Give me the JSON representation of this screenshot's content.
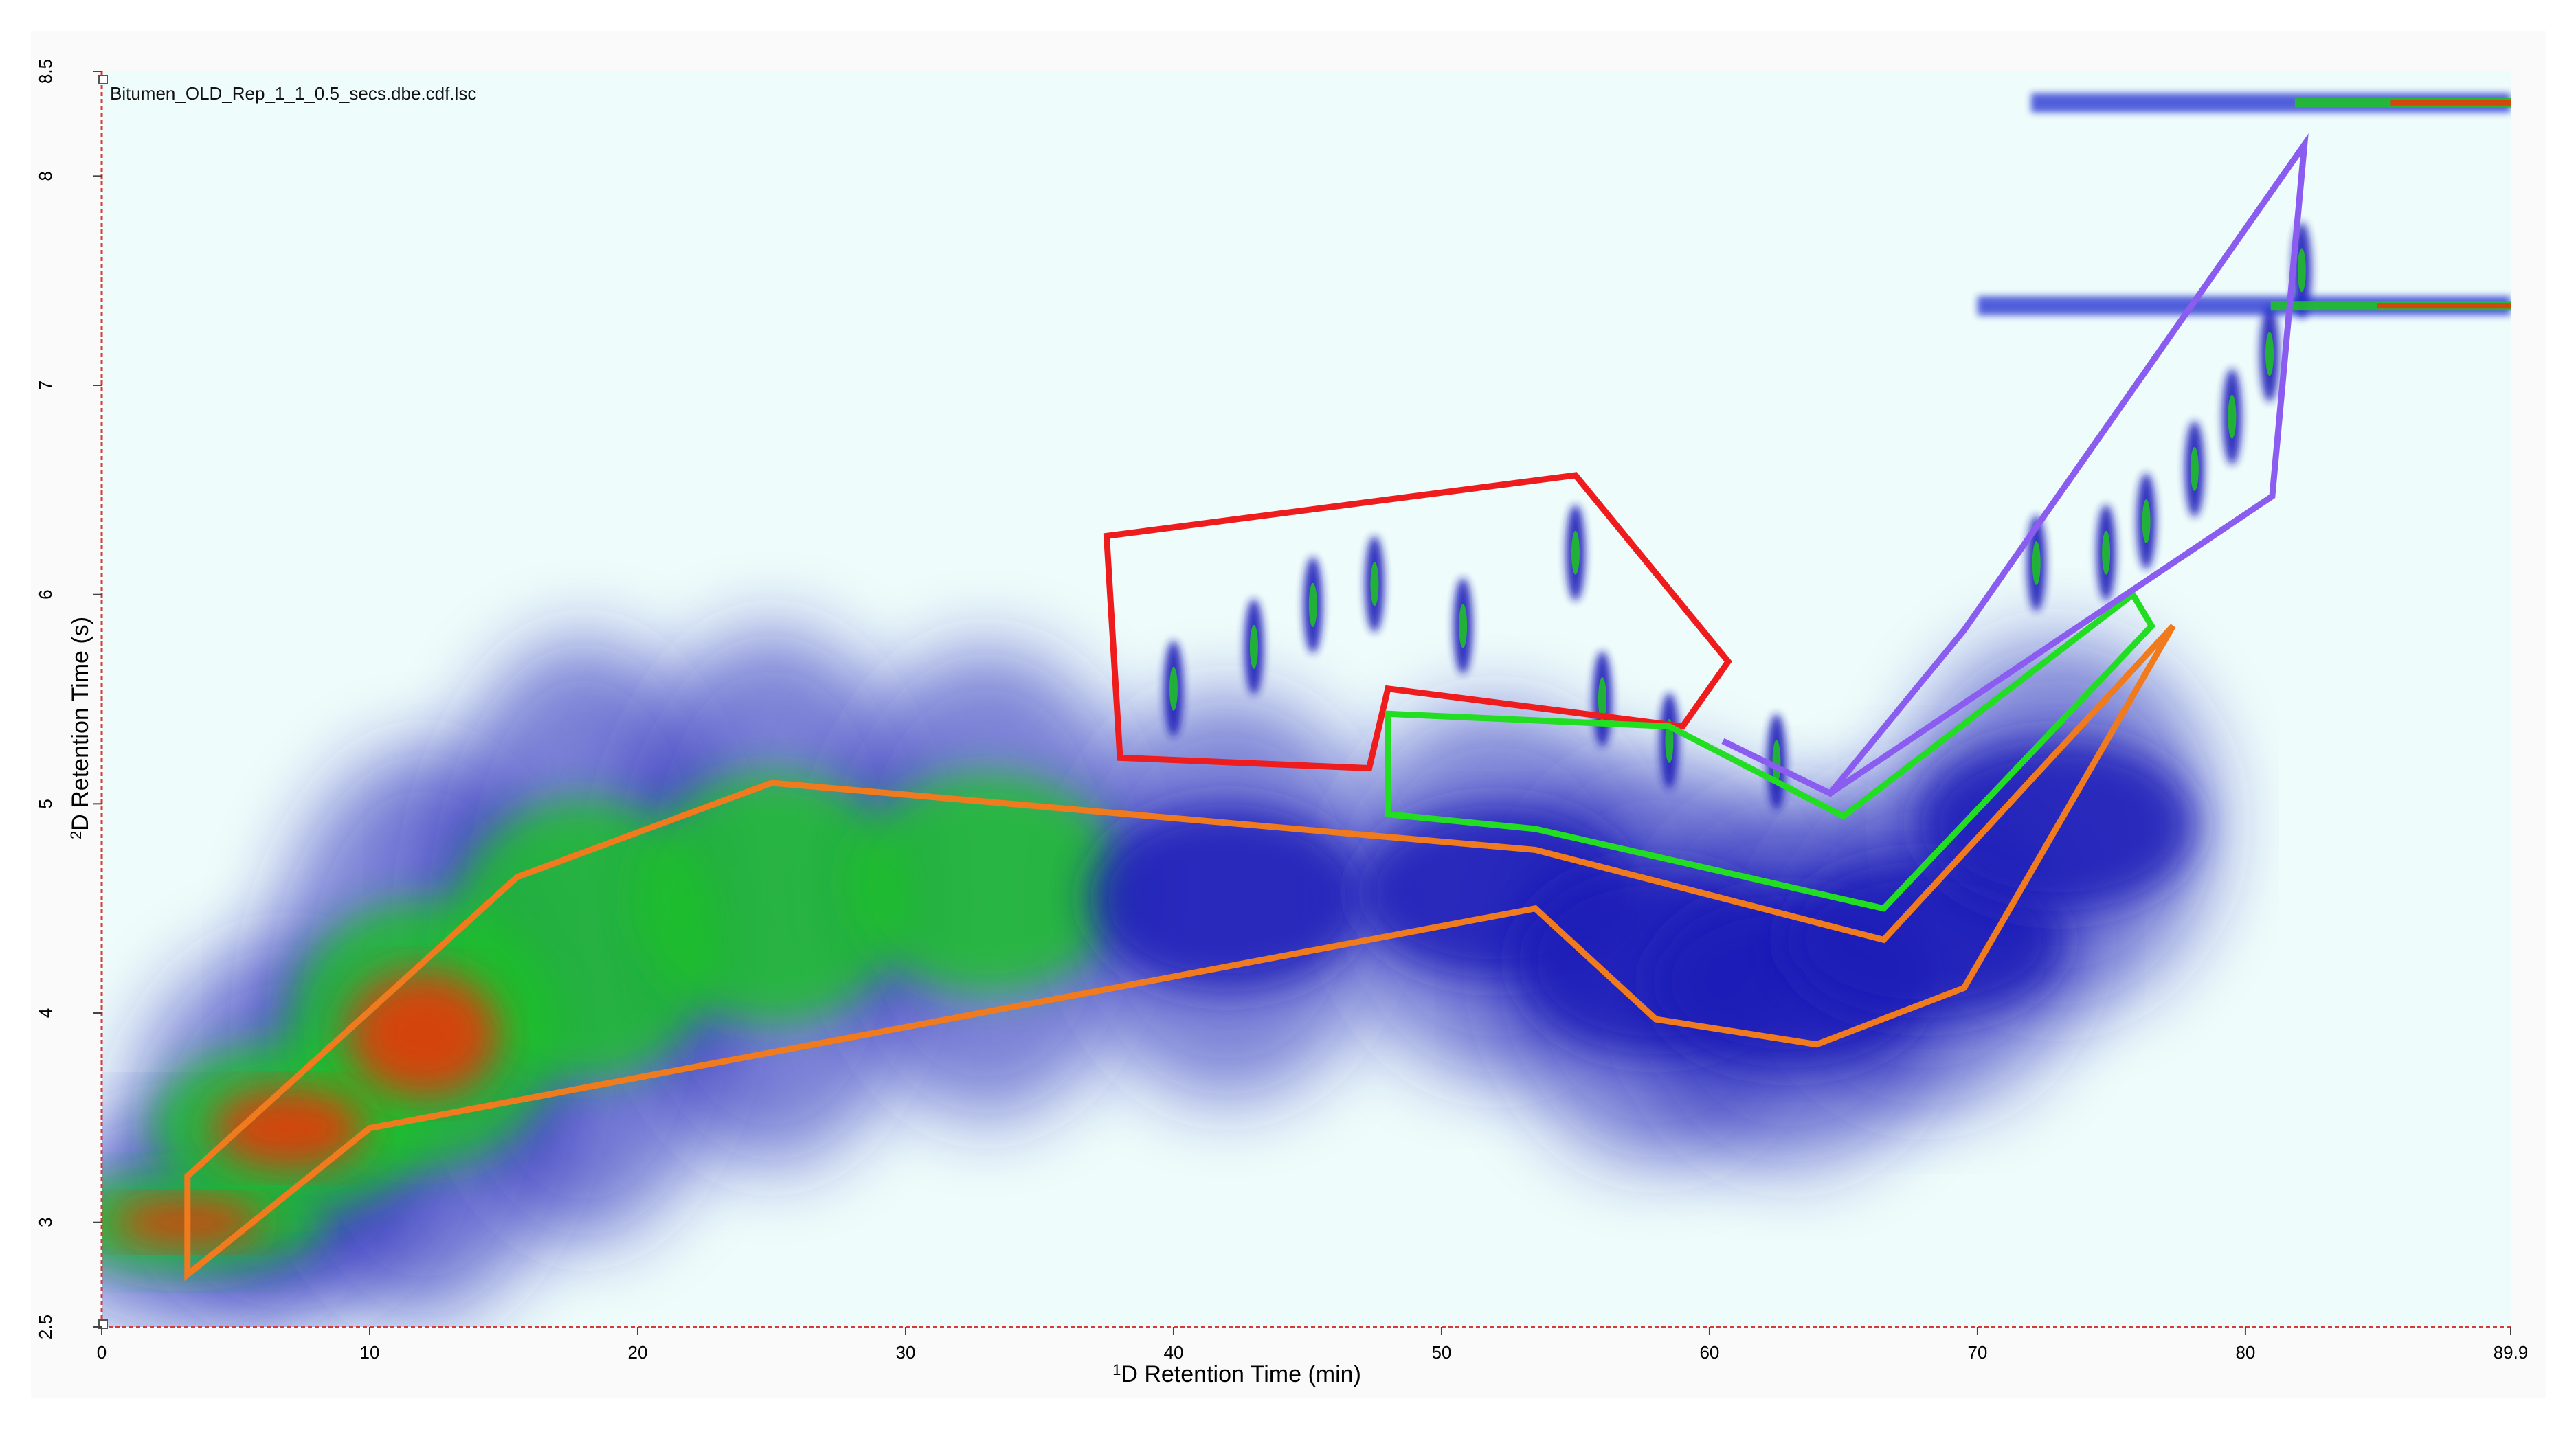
{
  "chart_data": {
    "type": "heatmap",
    "file_label": "Bitumen_OLD_Rep_1_1_0.5_secs.dbe.cdf.lsc",
    "xlabel_sup": "1",
    "xlabel_rest": "D Retention Time (min)",
    "ylabel_sup": "2",
    "ylabel_rest": "D Retention Time (s)",
    "xlim": [
      0,
      89.9
    ],
    "ylim": [
      2.5,
      8.5
    ],
    "x_ticks": [
      {
        "value": 0,
        "label": "0"
      },
      {
        "value": 10,
        "label": "10"
      },
      {
        "value": 20,
        "label": "20"
      },
      {
        "value": 30,
        "label": "30"
      },
      {
        "value": 40,
        "label": "40"
      },
      {
        "value": 50,
        "label": "50"
      },
      {
        "value": 60,
        "label": "60"
      },
      {
        "value": 70,
        "label": "70"
      },
      {
        "value": 80,
        "label": "80"
      },
      {
        "value": 89.9,
        "label": "89.9"
      }
    ],
    "y_ticks": [
      {
        "value": 2.5,
        "label": "2.5"
      },
      {
        "value": 3,
        "label": "3"
      },
      {
        "value": 4,
        "label": "4"
      },
      {
        "value": 5,
        "label": "5"
      },
      {
        "value": 6,
        "label": "6"
      },
      {
        "value": 7,
        "label": "7"
      },
      {
        "value": 8,
        "label": "8"
      },
      {
        "value": 8.5,
        "label": "8.5"
      }
    ],
    "colors": {
      "background": "#eefcfb",
      "low": "#1f1fb8",
      "mid": "#1fbf2a",
      "high": "#ff2a00",
      "bleed": "#1a2ad0"
    },
    "regions": [
      {
        "color": "#f07a1e",
        "points": [
          [
            3.2,
            3.22
          ],
          [
            15.5,
            4.65
          ],
          [
            25,
            5.1
          ],
          [
            53.5,
            4.78
          ],
          [
            66.5,
            4.35
          ],
          [
            77.3,
            5.85
          ],
          [
            69.5,
            4.12
          ],
          [
            64,
            3.85
          ],
          [
            58,
            3.97
          ],
          [
            53.5,
            4.5
          ],
          [
            10,
            3.45
          ],
          [
            3.2,
            2.75
          ]
        ]
      },
      {
        "color": "#ee1c1c",
        "points": [
          [
            37.5,
            6.28
          ],
          [
            55,
            6.57
          ],
          [
            60.7,
            5.68
          ],
          [
            59,
            5.37
          ],
          [
            48,
            5.55
          ],
          [
            47.3,
            5.17
          ],
          [
            38,
            5.22
          ]
        ]
      },
      {
        "color": "#22dd22",
        "points": [
          [
            48,
            5.43
          ],
          [
            58.5,
            5.37
          ],
          [
            65,
            4.94
          ],
          [
            75.8,
            6.0
          ],
          [
            76.5,
            5.85
          ],
          [
            66.5,
            4.5
          ],
          [
            53.5,
            4.88
          ],
          [
            48,
            4.95
          ]
        ]
      },
      {
        "color": "#8a5cf0",
        "points": [
          [
            60.5,
            5.3
          ],
          [
            64.5,
            5.05
          ],
          [
            69.5,
            5.83
          ],
          [
            82.2,
            8.15
          ],
          [
            81,
            6.47
          ],
          [
            64.5,
            5.05
          ]
        ]
      }
    ],
    "blob_band": [
      {
        "x": 3.2,
        "y": 3.0,
        "h": 0.32,
        "c": "high"
      },
      {
        "x": 7,
        "y": 3.45,
        "h": 0.55,
        "c": "high"
      },
      {
        "x": 12,
        "y": 3.9,
        "h": 0.85,
        "c": "high"
      },
      {
        "x": 18,
        "y": 4.35,
        "h": 0.9,
        "c": "mid"
      },
      {
        "x": 25,
        "y": 4.55,
        "h": 0.8,
        "c": "mid"
      },
      {
        "x": 33,
        "y": 4.62,
        "h": 0.7,
        "c": "mid"
      },
      {
        "x": 42,
        "y": 4.55,
        "h": 0.6,
        "c": "low"
      },
      {
        "x": 52,
        "y": 4.58,
        "h": 0.55,
        "c": "low"
      },
      {
        "x": 58,
        "y": 4.25,
        "h": 0.6,
        "c": "low"
      },
      {
        "x": 63,
        "y": 4.15,
        "h": 0.55,
        "c": "low"
      },
      {
        "x": 68,
        "y": 4.35,
        "h": 0.5,
        "c": "low"
      },
      {
        "x": 73,
        "y": 4.9,
        "h": 0.55,
        "c": "low"
      }
    ],
    "spots": [
      {
        "x": 40,
        "y": 5.55
      },
      {
        "x": 43,
        "y": 5.75
      },
      {
        "x": 45.2,
        "y": 5.95
      },
      {
        "x": 47.5,
        "y": 6.05
      },
      {
        "x": 50.8,
        "y": 5.85
      },
      {
        "x": 55,
        "y": 6.2
      },
      {
        "x": 56,
        "y": 5.5
      },
      {
        "x": 58.5,
        "y": 5.3
      },
      {
        "x": 62.5,
        "y": 5.2
      },
      {
        "x": 72.2,
        "y": 6.15
      },
      {
        "x": 74.8,
        "y": 6.2
      },
      {
        "x": 76.3,
        "y": 6.35
      },
      {
        "x": 78.1,
        "y": 6.6
      },
      {
        "x": 79.5,
        "y": 6.85
      },
      {
        "x": 80.9,
        "y": 7.15
      },
      {
        "x": 82.1,
        "y": 7.55
      }
    ],
    "bleed_lines": [
      {
        "y": 8.35,
        "x_start": 72,
        "x_end": 89.9
      },
      {
        "y": 7.38,
        "x_start": 70,
        "x_end": 89.9
      }
    ]
  }
}
